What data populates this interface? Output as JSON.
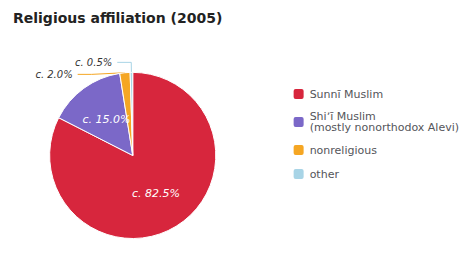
{
  "chart_data": {
    "type": "pie",
    "title": "Religious affiliation (2005)",
    "categories": [
      "Sunnī Muslim",
      "Shiʼī Muslim\n(mostly nonorthodox Alevi)",
      "nonreligious",
      "other"
    ],
    "values": [
      82.5,
      15.0,
      2.0,
      0.5
    ],
    "value_labels": [
      "c. 82.5%",
      "c. 15.0%",
      "c. 2.0%",
      "c. 0.5%"
    ],
    "colors": [
      "#d7263d",
      "#7b68c8",
      "#f5a623",
      "#a8d4e6"
    ],
    "data_labels": true,
    "legend": "right"
  }
}
